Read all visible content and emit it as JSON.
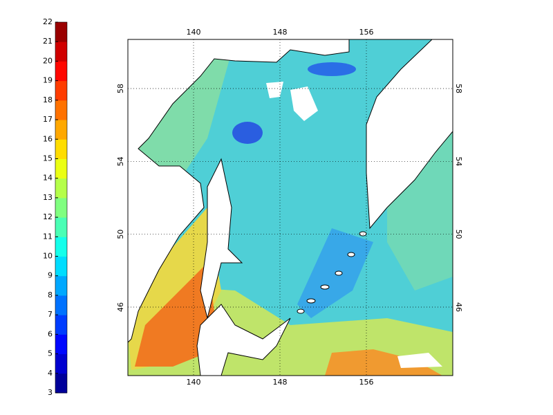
{
  "colorbar": {
    "ticks": [
      3,
      4,
      5,
      6,
      7,
      8,
      9,
      10,
      11,
      12,
      13,
      14,
      15,
      16,
      17,
      18,
      19,
      20,
      21,
      22
    ]
  },
  "map": {
    "lon_ticks": [
      140,
      148,
      156
    ],
    "lat_ticks": [
      58,
      54,
      50,
      46
    ]
  }
}
